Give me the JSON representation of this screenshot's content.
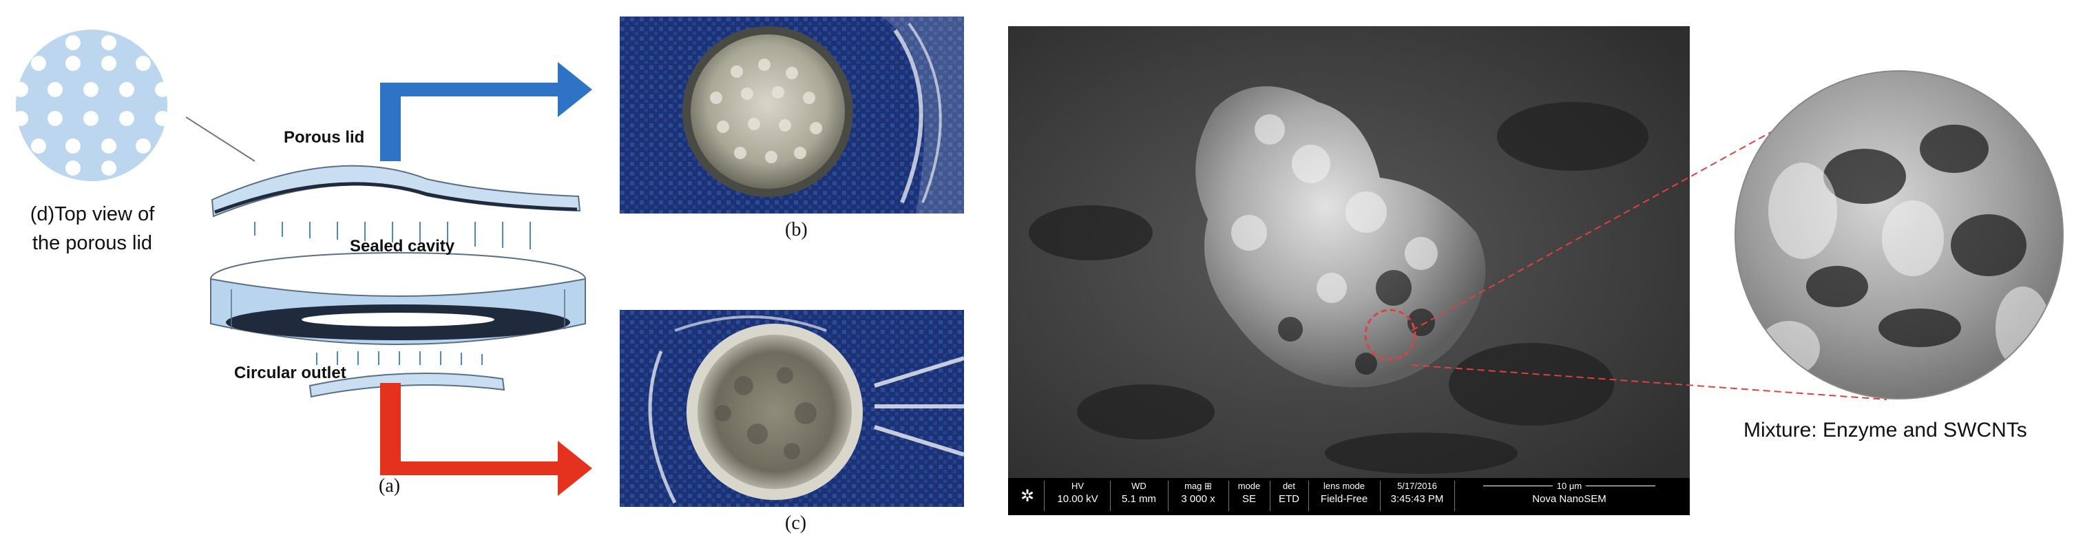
{
  "figure": {
    "left": {
      "top_view_caption_line1": "(d)Top view of",
      "top_view_caption_line2": "the porous lid",
      "label_porous_lid": "Porous lid",
      "label_sealed_cavity": "Sealed cavity",
      "label_circular_outlet": "Circular outlet",
      "label_a": "(a)"
    },
    "photos": {
      "label_b": "(b)",
      "label_c": "(c)"
    },
    "sem": {
      "info_bar": [
        {
          "key": "HV",
          "value": "10.00 kV"
        },
        {
          "key": "WD",
          "value": "5.1 mm"
        },
        {
          "key": "mag ⊞",
          "value": "3 000 x"
        },
        {
          "key": "mode",
          "value": "SE"
        },
        {
          "key": "det",
          "value": "ETD"
        },
        {
          "key": "lens mode",
          "value": "Field-Free"
        },
        {
          "key": "5/17/2016",
          "value": "3:45:43 PM"
        }
      ],
      "scale_label": "10 μm",
      "instrument": "Nova NanoSEM"
    },
    "zoom": {
      "caption": "Mixture: Enzyme and SWCNTs"
    },
    "colors": {
      "blue_arrow": "#2f74c4",
      "red_arrow": "#e5321f",
      "device_fill": "#b9d5ee",
      "device_stroke": "#5a6f86",
      "lid_circle": "#bcd6f0",
      "zoom_dash": "#e04040"
    }
  }
}
